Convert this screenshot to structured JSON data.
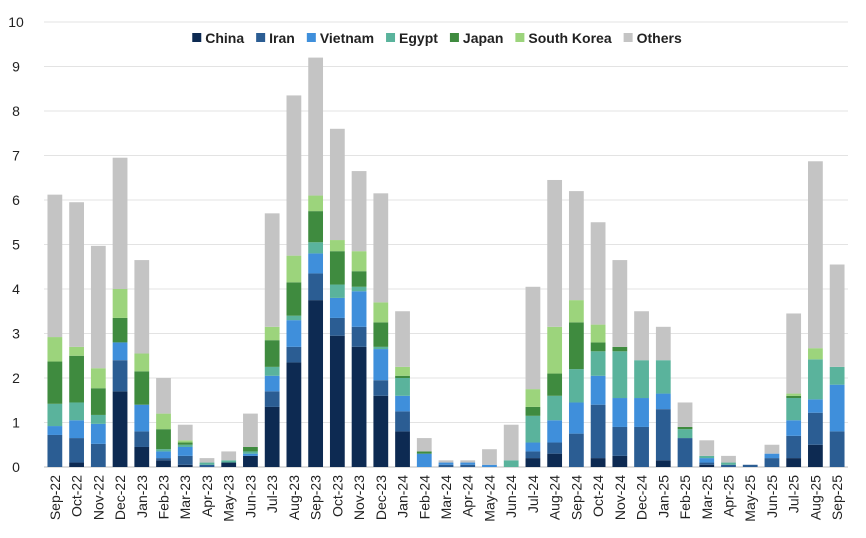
{
  "chart_data": {
    "type": "bar",
    "stacked": true,
    "title": "",
    "xlabel": "",
    "ylabel": "",
    "ylim": [
      0,
      10
    ],
    "yticks": [
      0,
      1,
      2,
      3,
      4,
      5,
      6,
      7,
      8,
      9,
      10
    ],
    "grid": true,
    "legend_position": "top",
    "categories": [
      "Sep-22",
      "Oct-22",
      "Nov-22",
      "Dec-22",
      "Jan-23",
      "Feb-23",
      "Mar-23",
      "Apr-23",
      "May-23",
      "Jun-23",
      "Jul-23",
      "Aug-23",
      "Sep-23",
      "Oct-23",
      "Nov-23",
      "Dec-23",
      "Jan-24",
      "Feb-24",
      "Mar-24",
      "Apr-24",
      "May-24",
      "Jun-24",
      "Jul-24",
      "Aug-24",
      "Sep-24",
      "Oct-24",
      "Nov-24",
      "Dec-24",
      "Jan-25",
      "Feb-25",
      "Mar-25",
      "Apr-25",
      "May-25",
      "Jun-25",
      "Jul-25",
      "Aug-25",
      "Sep-25"
    ],
    "series": [
      {
        "name": "China",
        "color": "#0d2a52",
        "values": [
          0.0,
          0.1,
          0.0,
          1.7,
          0.45,
          0.15,
          0.05,
          0.0,
          0.1,
          0.25,
          1.35,
          2.35,
          3.75,
          2.95,
          2.7,
          1.6,
          0.8,
          0.0,
          0.0,
          0.0,
          0.0,
          0.0,
          0.2,
          0.3,
          0.0,
          0.2,
          0.25,
          0.0,
          0.15,
          0.0,
          0.05,
          0.0,
          0.0,
          0.0,
          0.2,
          0.5,
          0.0
        ]
      },
      {
        "name": "Iran",
        "color": "#2b5d93",
        "values": [
          0.72,
          0.55,
          0.52,
          0.7,
          0.35,
          0.05,
          0.2,
          0.05,
          0.0,
          0.0,
          0.35,
          0.35,
          0.6,
          0.4,
          0.45,
          0.35,
          0.45,
          0.0,
          0.05,
          0.05,
          0.0,
          0.0,
          0.15,
          0.25,
          0.75,
          1.2,
          0.65,
          0.9,
          1.15,
          0.65,
          0.05,
          0.05,
          0.05,
          0.2,
          0.5,
          0.72,
          0.8
        ]
      },
      {
        "name": "Vietnam",
        "color": "#3f8fdb",
        "values": [
          0.2,
          0.4,
          0.45,
          0.4,
          0.6,
          0.15,
          0.2,
          0.0,
          0.0,
          0.05,
          0.35,
          0.6,
          0.45,
          0.45,
          0.8,
          0.7,
          0.35,
          0.3,
          0.05,
          0.05,
          0.05,
          0.0,
          0.2,
          0.5,
          0.7,
          0.65,
          0.65,
          0.65,
          0.35,
          0.0,
          0.1,
          0.0,
          0.0,
          0.1,
          0.35,
          0.3,
          1.05
        ]
      },
      {
        "name": "Egypt",
        "color": "#5ab39c",
        "values": [
          0.5,
          0.4,
          0.2,
          0.0,
          0.0,
          0.05,
          0.05,
          0.05,
          0.05,
          0.05,
          0.2,
          0.1,
          0.25,
          0.3,
          0.1,
          0.05,
          0.4,
          0.0,
          0.0,
          0.0,
          0.0,
          0.15,
          0.6,
          0.55,
          0.75,
          0.55,
          1.05,
          0.85,
          0.75,
          0.2,
          0.05,
          0.05,
          0.0,
          0.0,
          0.5,
          0.9,
          0.4
        ]
      },
      {
        "name": "Japan",
        "color": "#3f8b3f",
        "values": [
          0.95,
          1.05,
          0.6,
          0.55,
          0.75,
          0.45,
          0.05,
          0.0,
          0.0,
          0.1,
          0.6,
          0.75,
          0.7,
          0.75,
          0.35,
          0.55,
          0.05,
          0.05,
          0.0,
          0.0,
          0.0,
          0.0,
          0.2,
          0.5,
          1.05,
          0.2,
          0.1,
          0.0,
          0.0,
          0.05,
          0.0,
          0.0,
          0.0,
          0.0,
          0.05,
          0.0,
          0.0
        ]
      },
      {
        "name": "South Korea",
        "color": "#9cd47c",
        "values": [
          0.55,
          0.2,
          0.45,
          0.65,
          0.4,
          0.35,
          0.05,
          0.0,
          0.0,
          0.0,
          0.3,
          0.6,
          0.35,
          0.25,
          0.45,
          0.45,
          0.2,
          0.0,
          0.0,
          0.0,
          0.0,
          0.0,
          0.4,
          1.05,
          0.5,
          0.4,
          0.0,
          0.0,
          0.0,
          0.0,
          0.0,
          0.0,
          0.0,
          0.0,
          0.05,
          0.25,
          0.0
        ]
      },
      {
        "name": "Others",
        "color": "#c4c4c4",
        "values": [
          3.2,
          3.25,
          2.75,
          2.95,
          2.1,
          0.8,
          0.35,
          0.1,
          0.2,
          0.75,
          2.55,
          3.6,
          3.1,
          2.5,
          1.8,
          2.45,
          1.25,
          0.3,
          0.05,
          0.05,
          0.35,
          0.8,
          2.3,
          3.3,
          2.45,
          2.3,
          1.95,
          1.1,
          0.75,
          0.55,
          0.35,
          0.15,
          0.0,
          0.2,
          1.8,
          4.2,
          2.3
        ]
      }
    ]
  }
}
